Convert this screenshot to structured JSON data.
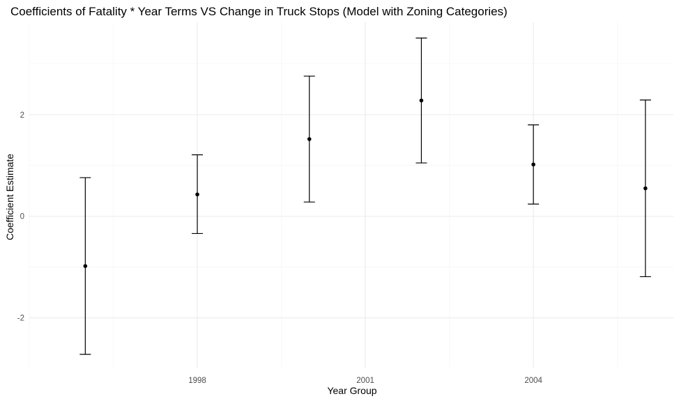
{
  "chart_data": {
    "type": "scatter",
    "title": "Coefficients of Fatality * Year Terms VS Change in Truck Stops (Model with Zoning Categories)",
    "xlabel": "Year Group",
    "ylabel": "Coefficient Estimate",
    "x_ticks": [
      "1998",
      "2001",
      "2004"
    ],
    "y_ticks": [
      "-2",
      "0",
      "2"
    ],
    "ylim": [
      -2.98,
      3.82
    ],
    "grid": true,
    "legend": "none",
    "points": [
      {
        "x": 1996.0,
        "estimate": -0.98,
        "lower": -2.72,
        "upper": 0.76
      },
      {
        "x": 1998.0,
        "estimate": 0.43,
        "lower": -0.34,
        "upper": 1.21
      },
      {
        "x": 2000.0,
        "estimate": 1.52,
        "lower": 0.28,
        "upper": 2.76
      },
      {
        "x": 2002.0,
        "estimate": 2.28,
        "lower": 1.05,
        "upper": 3.51
      },
      {
        "x": 2004.0,
        "estimate": 1.02,
        "lower": 0.24,
        "upper": 1.8
      },
      {
        "x": 2006.0,
        "estimate": 0.55,
        "lower": -1.19,
        "upper": 2.29
      }
    ]
  }
}
